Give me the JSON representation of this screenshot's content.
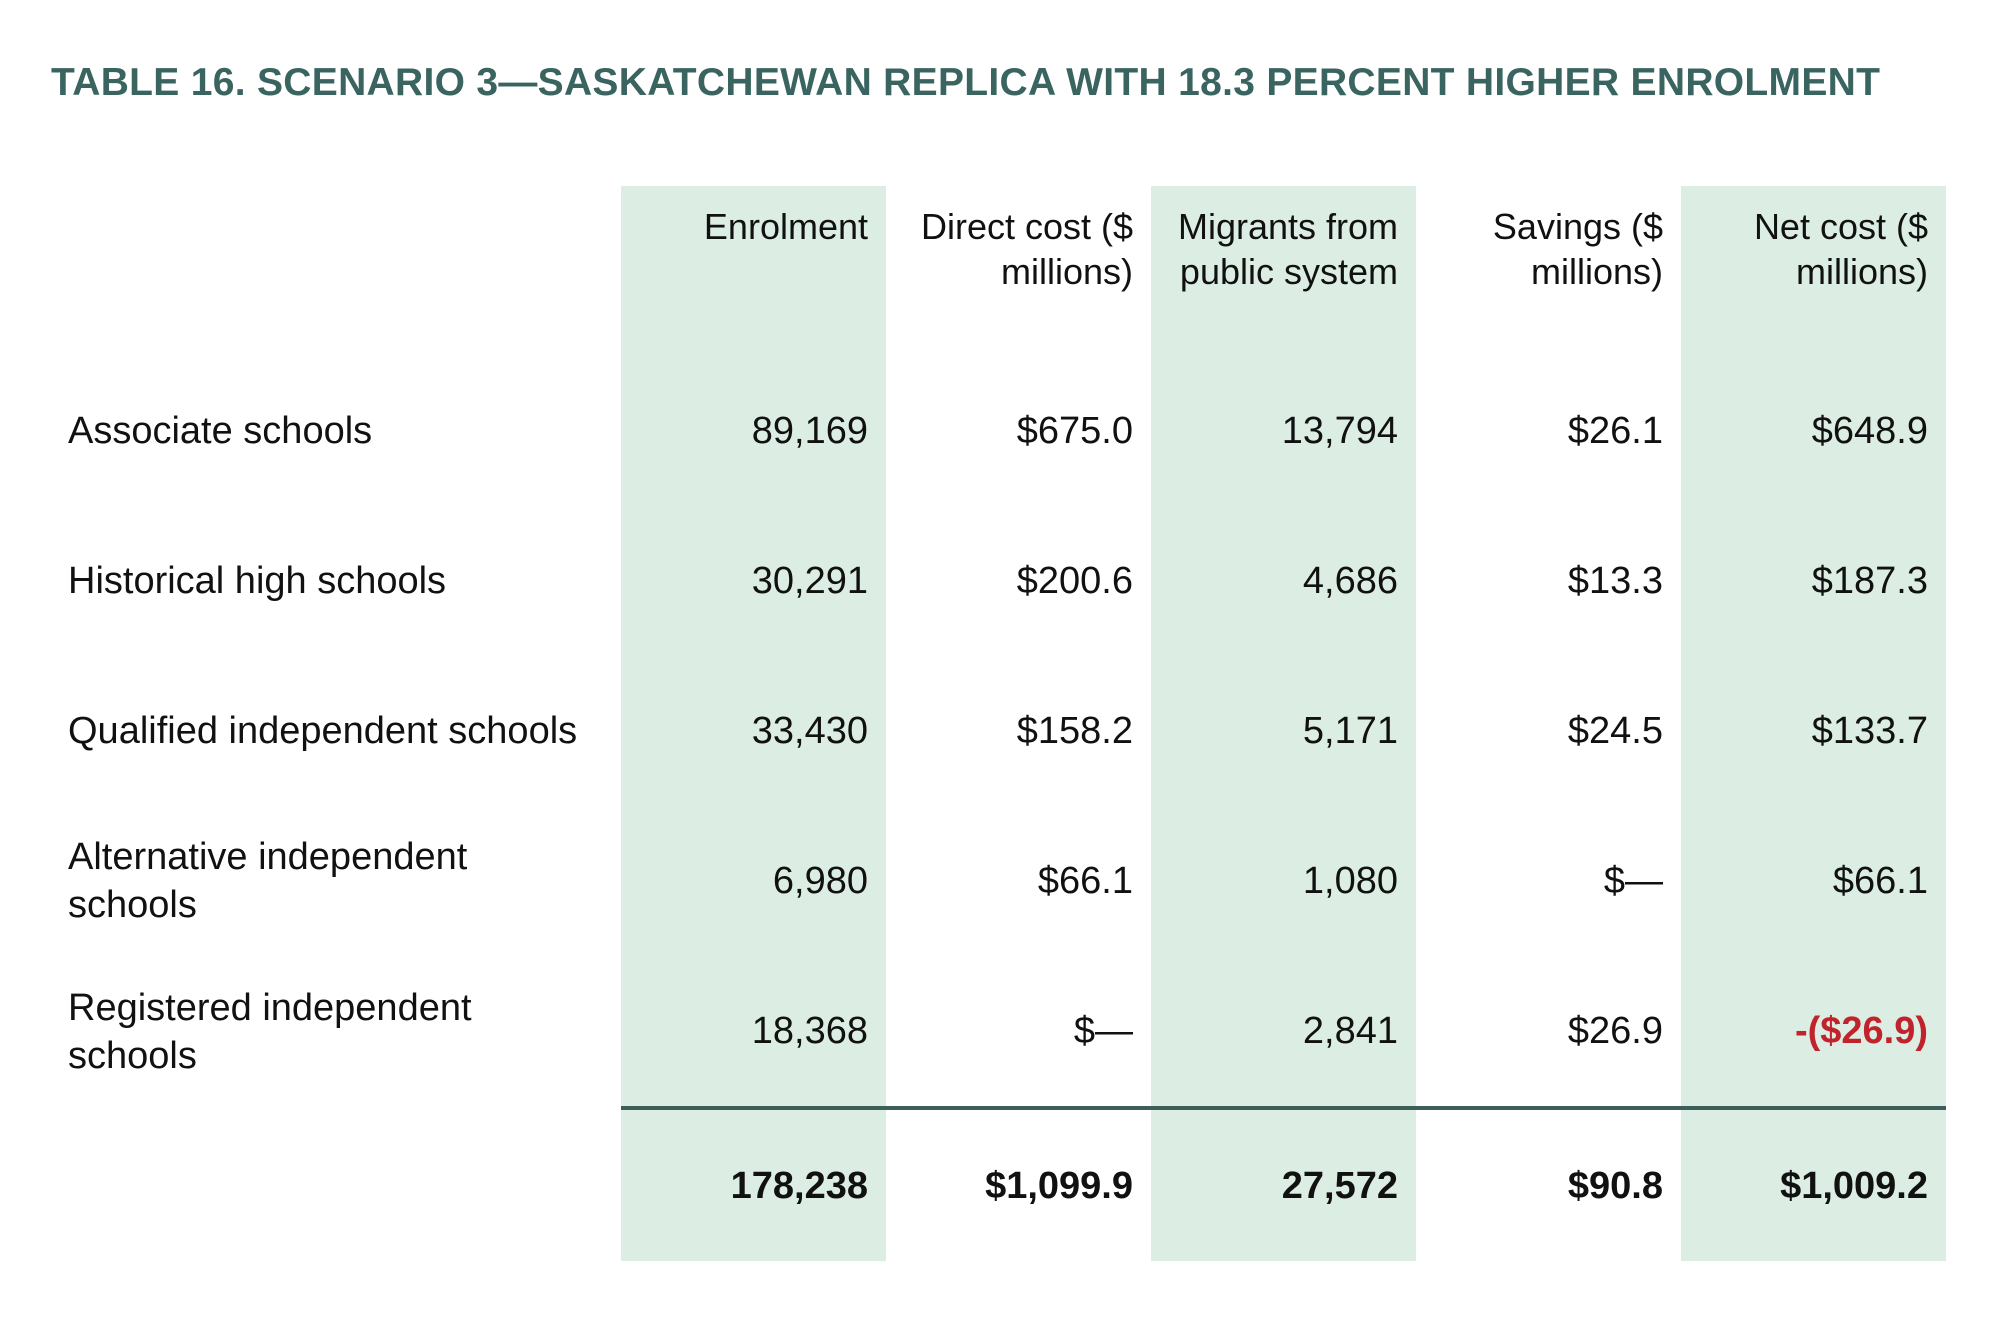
{
  "title": "TABLE 16. SCENARIO 3—SASKATCHEWAN REPLICA WITH 18.3 PERCENT HIGHER ENROLMENT",
  "columns": [
    "Enrolment",
    "Direct cost ($ millions)",
    "Migrants from public system",
    "Savings ($ millions)",
    "Net cost ($ millions)"
  ],
  "rows": [
    {
      "label": "Associate schools",
      "values": [
        "89,169",
        "$675.0",
        "13,794",
        "$26.1",
        "$648.9"
      ]
    },
    {
      "label": "Historical high schools",
      "values": [
        "30,291",
        "$200.6",
        "4,686",
        "$13.3",
        "$187.3"
      ]
    },
    {
      "label": "Qualified independent schools",
      "values": [
        "33,430",
        "$158.2",
        "5,171",
        "$24.5",
        "$133.7"
      ]
    },
    {
      "label": "Alternative independent schools",
      "values": [
        "6,980",
        "$66.1",
        "1,080",
        "$—",
        "$66.1"
      ]
    },
    {
      "label": "Registered independent schools",
      "values": [
        "18,368",
        "$—",
        "2,841",
        "$26.9",
        "-($26.9)"
      ]
    }
  ],
  "totals": [
    "178,238",
    "$1,099.9",
    "27,572",
    "$90.8",
    "$1,009.2"
  ],
  "colors": {
    "title": "#3a6460",
    "shade": "#dceee3",
    "negative": "#c0232c",
    "rule": "#3d5f5c"
  }
}
